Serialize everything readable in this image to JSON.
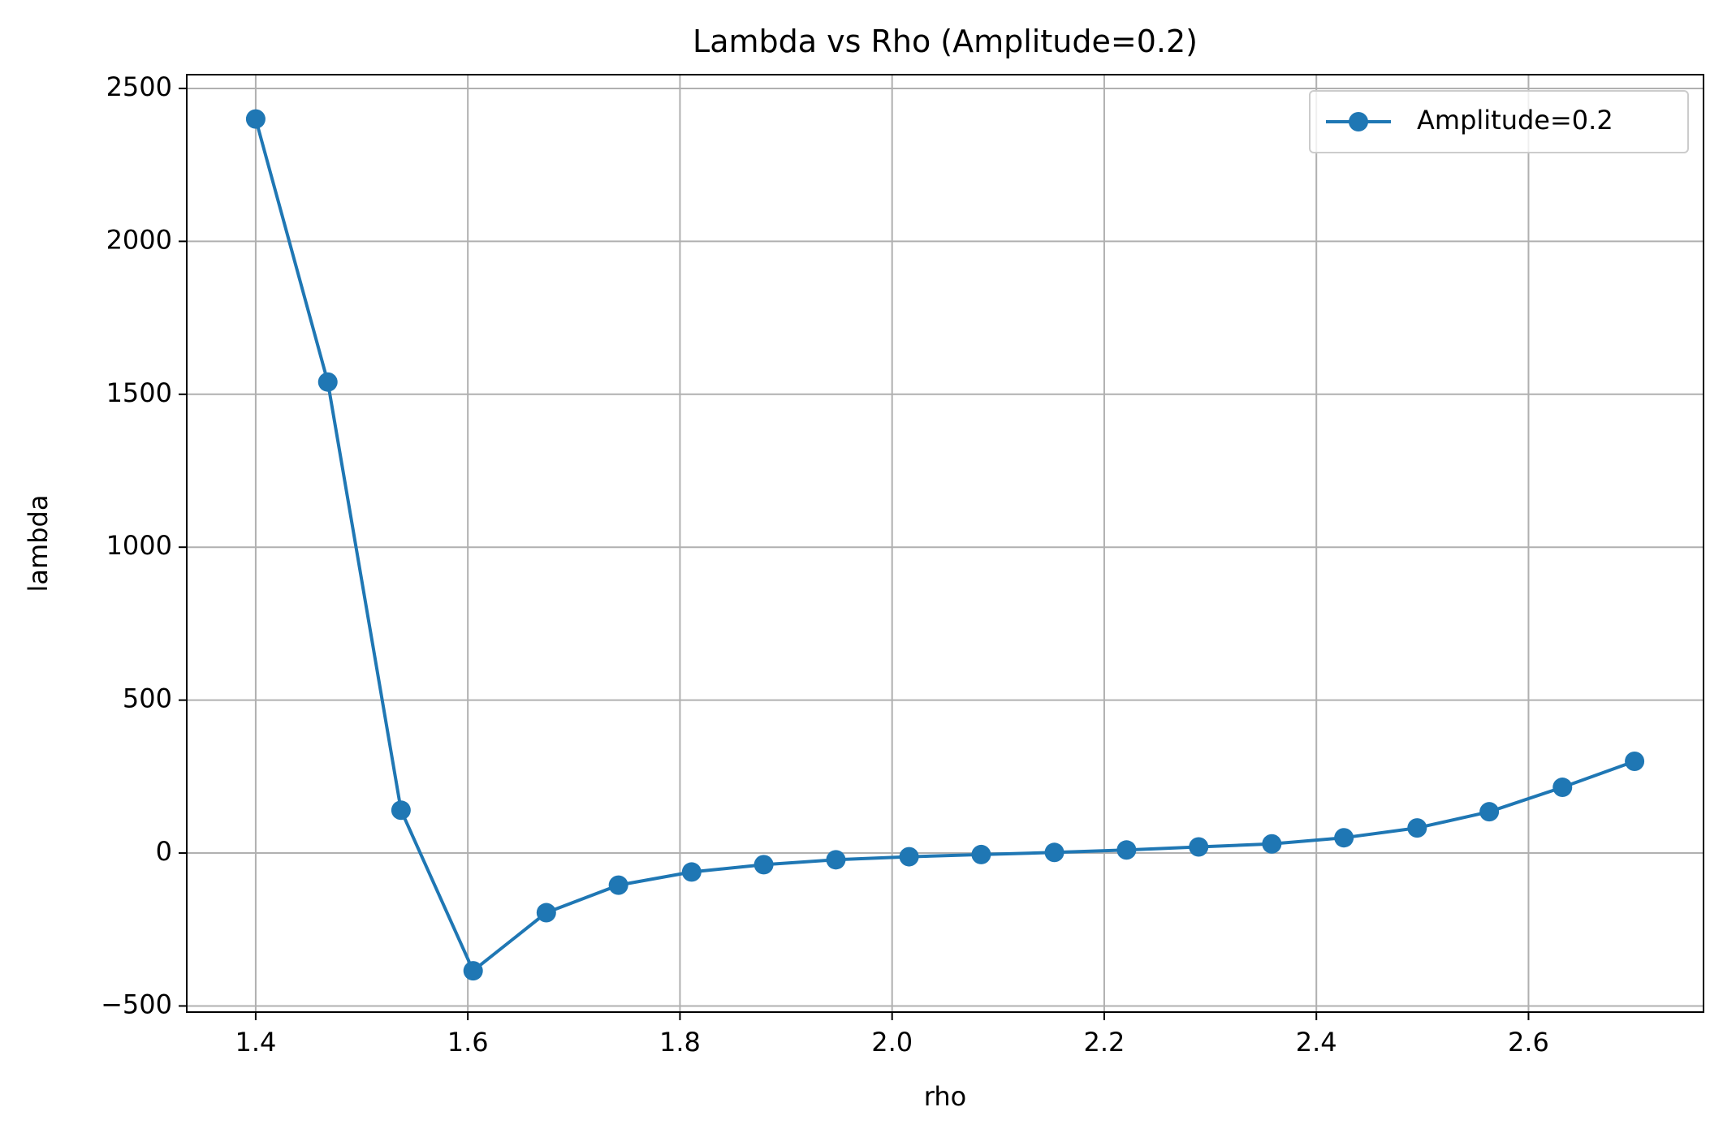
{
  "chart_data": {
    "type": "line",
    "title": "Lambda vs Rho (Amplitude=0.2)",
    "xlabel": "rho",
    "ylabel": "lambda",
    "xlim": [
      1.335,
      2.765
    ],
    "ylim": [
      -520,
      2545
    ],
    "xticks": [
      1.4,
      1.6,
      1.8,
      2.0,
      2.2,
      2.4,
      2.6
    ],
    "xtick_labels": [
      "1.4",
      "1.6",
      "1.8",
      "2.0",
      "2.2",
      "2.4",
      "2.6"
    ],
    "yticks": [
      -500,
      0,
      500,
      1000,
      1500,
      2000,
      2500
    ],
    "ytick_labels": [
      "−500",
      "0",
      "500",
      "1000",
      "1500",
      "2000",
      "2500"
    ],
    "grid": true,
    "legend_position": "top-right",
    "colors": {
      "series": "#1f77b4",
      "grid": "#b0b0b0",
      "axes": "#000000",
      "legend_border": "#cccccc"
    },
    "series": [
      {
        "name": "Amplitude=0.2",
        "marker": "circle",
        "x": [
          1.4,
          1.468,
          1.537,
          1.605,
          1.674,
          1.742,
          1.811,
          1.879,
          1.947,
          2.016,
          2.084,
          2.153,
          2.221,
          2.289,
          2.358,
          2.426,
          2.495,
          2.563,
          2.632,
          2.7
        ],
        "y": [
          2400,
          1540,
          140,
          -385,
          -195,
          -105,
          -62,
          -38,
          -22,
          -12,
          -5,
          2,
          10,
          20,
          30,
          50,
          82,
          135,
          215,
          300
        ]
      }
    ]
  }
}
